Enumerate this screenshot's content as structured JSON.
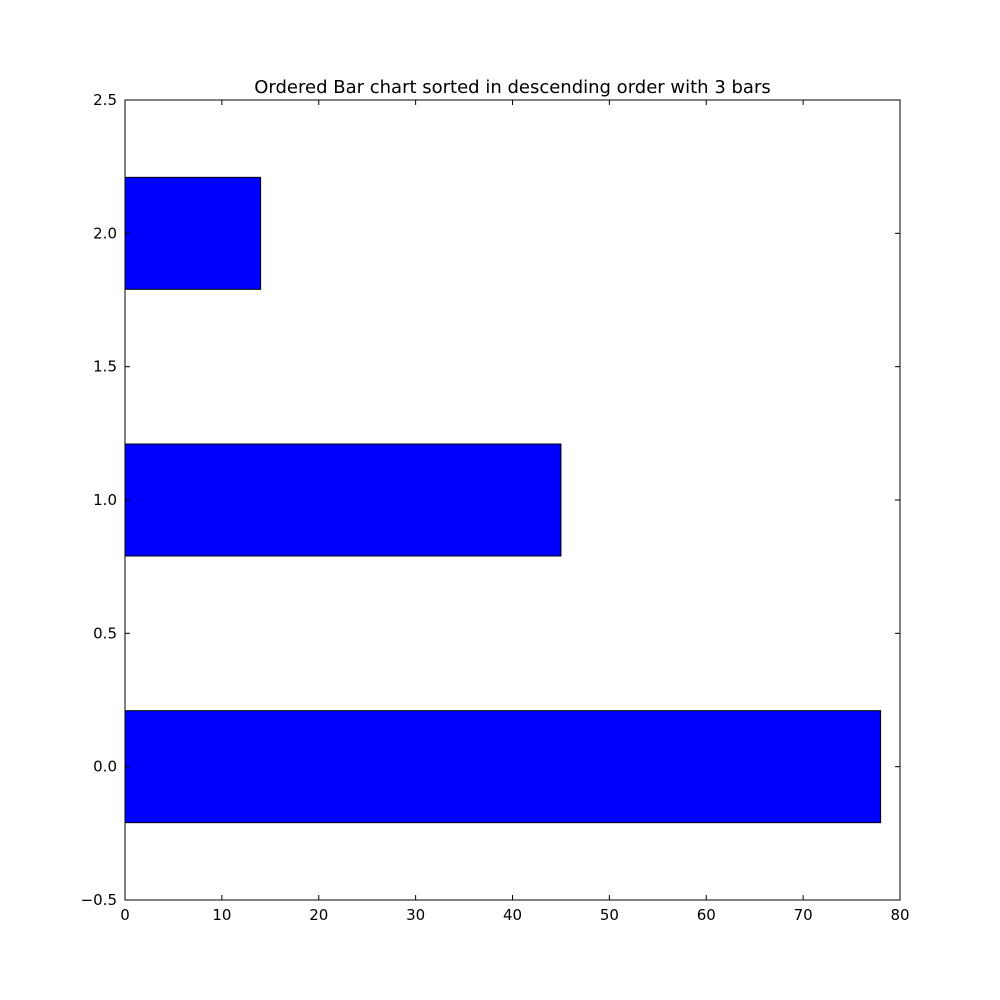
{
  "chart_data": {
    "type": "bar",
    "orientation": "horizontal",
    "title": "Ordered Bar chart sorted in descending order with 3 bars",
    "xlabel": "",
    "ylabel": "",
    "categories": [
      "0.0",
      "1.0",
      "2.0"
    ],
    "y_positions": [
      0,
      1,
      2
    ],
    "values": [
      78,
      45,
      14
    ],
    "bar_height": 0.42,
    "xlim": [
      0,
      80
    ],
    "ylim": [
      -0.5,
      2.5
    ],
    "xticks": [
      0,
      10,
      20,
      30,
      40,
      50,
      60,
      70,
      80
    ],
    "xtick_labels": [
      "0",
      "10",
      "20",
      "30",
      "40",
      "50",
      "60",
      "70",
      "80"
    ],
    "yticks": [
      -0.5,
      0.0,
      0.5,
      1.0,
      1.5,
      2.0,
      2.5
    ],
    "ytick_labels": [
      "−0.5",
      "0.0",
      "0.5",
      "1.0",
      "1.5",
      "2.0",
      "2.5"
    ],
    "bar_color": "#0000ff",
    "edge_color": "#000000",
    "grid": false,
    "legend": false
  }
}
